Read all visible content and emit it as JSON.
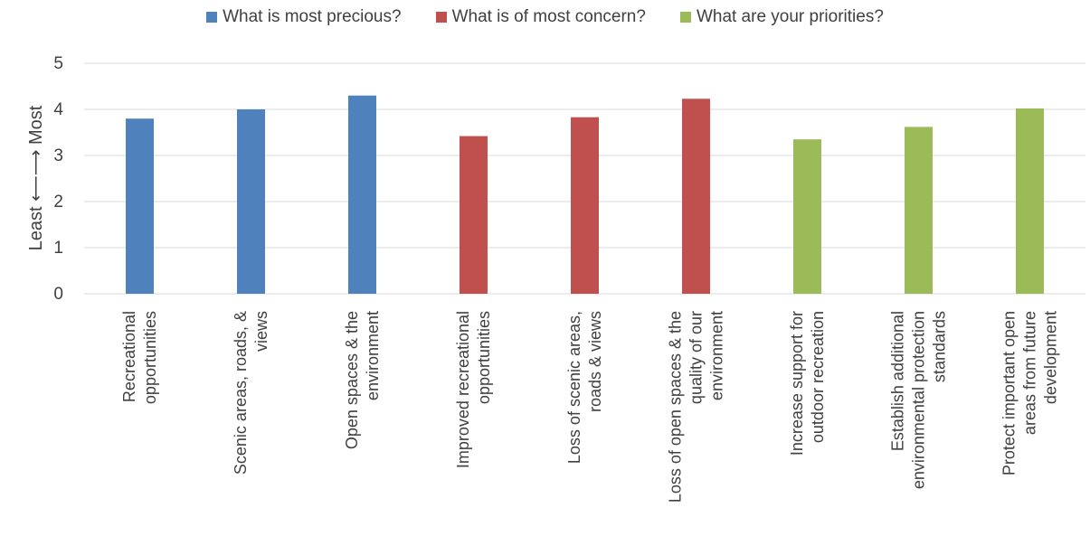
{
  "chart_data": {
    "type": "bar",
    "title": "",
    "ylabel": "Least ⟵⟶ Most",
    "ylim": [
      0,
      5
    ],
    "yticks": [
      0,
      1,
      2,
      3,
      4,
      5
    ],
    "grid": true,
    "legend_position": "top",
    "series": [
      {
        "name": "What is most precious?",
        "color": "#4F81BD"
      },
      {
        "name": "What is of most concern?",
        "color": "#C0504D"
      },
      {
        "name": "What are your priorities?",
        "color": "#9BBB59"
      }
    ],
    "bars": [
      {
        "category": "Recreational opportunities",
        "series": 0,
        "value": 3.8
      },
      {
        "category": "Scenic areas, roads, & views",
        "series": 0,
        "value": 4.0
      },
      {
        "category": "Open spaces & the environment",
        "series": 0,
        "value": 4.3
      },
      {
        "category": "Improved recreational opportunities",
        "series": 1,
        "value": 3.42
      },
      {
        "category": "Loss of scenic areas, roads & views",
        "series": 1,
        "value": 3.83
      },
      {
        "category": "Loss of open spaces & the quality of our environment",
        "series": 1,
        "value": 4.23
      },
      {
        "category": "Increase support for outdoor recreation",
        "series": 2,
        "value": 3.35
      },
      {
        "category": "Establish additional environmental protection standards",
        "series": 2,
        "value": 3.62
      },
      {
        "category": "Protect important open areas from future development",
        "series": 2,
        "value": 4.02
      }
    ],
    "category_lines": [
      [
        "Recreational",
        "opportunities"
      ],
      [
        "Scenic areas, roads, &",
        "views"
      ],
      [
        "Open spaces & the",
        "environment"
      ],
      [
        "Improved recreational",
        "opportunities"
      ],
      [
        "Loss of scenic areas,",
        "roads & views"
      ],
      [
        "Loss of open spaces & the",
        "quality of our",
        "environment"
      ],
      [
        "Increase support for",
        "outdoor recreation"
      ],
      [
        "Establish additional",
        "environmental protection",
        "standards"
      ],
      [
        "Protect important open",
        "areas from future",
        "development"
      ]
    ]
  }
}
